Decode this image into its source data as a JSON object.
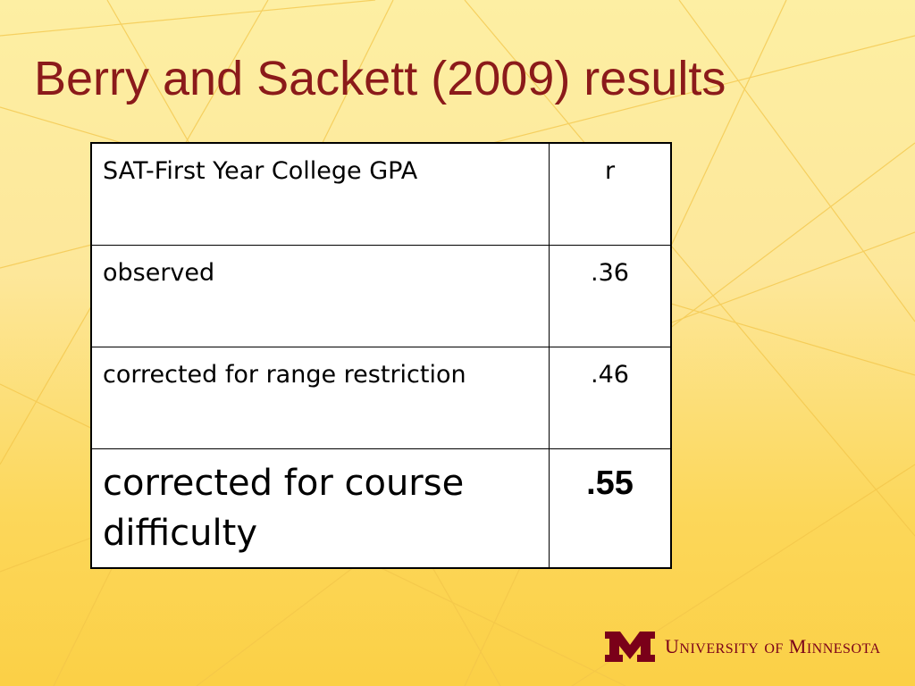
{
  "slide": {
    "title": "Berry and Sackett (2009) results"
  },
  "table": {
    "header": {
      "label": "SAT-First Year College GPA",
      "value": "r"
    },
    "rows": [
      {
        "label": "observed",
        "value": ".36"
      },
      {
        "label": "corrected for range restriction",
        "value": ".46"
      },
      {
        "label": "corrected for course difficulty",
        "value": ".55"
      }
    ]
  },
  "footer": {
    "logo_text": "University of Minnesota",
    "logo_icon": "block-m-icon"
  },
  "colors": {
    "title": "#8b1a1a",
    "brand_maroon": "#7a0019",
    "background_top": "#fdefa3",
    "background_bottom": "#fbd046"
  }
}
